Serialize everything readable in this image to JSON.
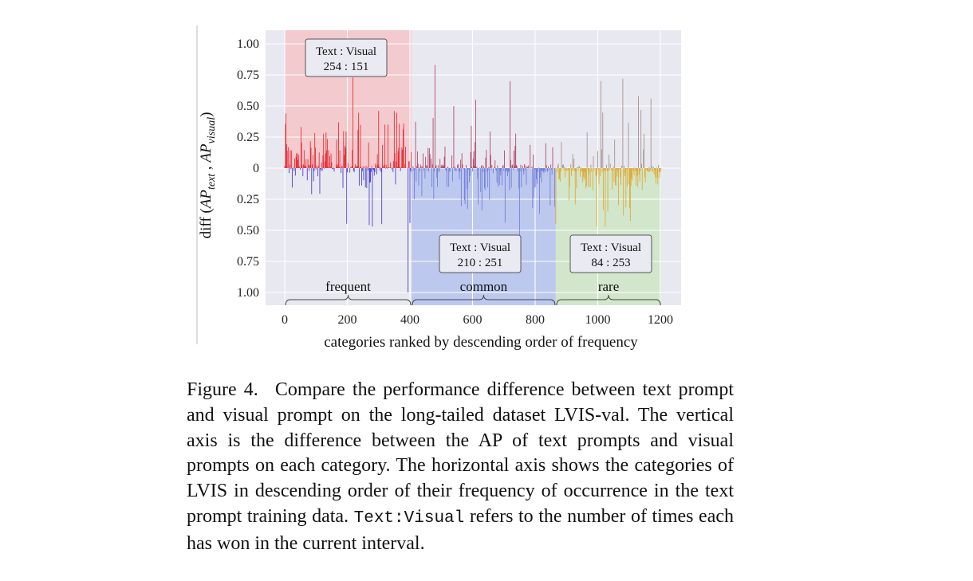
{
  "chart_data": {
    "type": "bar",
    "title": "",
    "xlabel": "categories ranked by descending order of frequency",
    "ylabel": "diff (AP_text , AP_visual)",
    "ylabel_parts": {
      "prefix": "diff (",
      "ap1": "AP",
      "sub1": "text",
      "sep": " , ",
      "ap2": "AP",
      "sub2": "visual",
      "suffix": ")"
    },
    "xlim": [
      0,
      1203
    ],
    "ylim": [
      -1.0,
      1.0
    ],
    "xticks": [
      0,
      200,
      400,
      600,
      800,
      1000,
      1200
    ],
    "yticks": [
      {
        "value": 1.0,
        "label": "1.00"
      },
      {
        "value": 0.75,
        "label": "0.75"
      },
      {
        "value": 0.5,
        "label": "0.50"
      },
      {
        "value": 0.25,
        "label": "0.25"
      },
      {
        "value": 0.0,
        "label": "0"
      },
      {
        "value": -0.25,
        "label": "0.25"
      },
      {
        "value": -0.5,
        "label": "0.50"
      },
      {
        "value": -0.75,
        "label": "0.75"
      },
      {
        "value": -1.0,
        "label": "1.00"
      }
    ],
    "grid": true,
    "groups": [
      {
        "name": "frequent",
        "range": [
          0,
          405
        ],
        "text_wins": 254,
        "visual_wins": 151,
        "box_label": "Text : Visual",
        "box_value": "254 : 151",
        "shade": "#f4c4c8",
        "pos_color": "#e8202a",
        "neg_color": "#3a2fd6"
      },
      {
        "name": "common",
        "range": [
          405,
          866
        ],
        "text_wins": 210,
        "visual_wins": 251,
        "box_label": "Text : Visual",
        "box_value": "210 : 251",
        "shade": "#b8c4ee",
        "pos_color": "#b0385a",
        "neg_color": "#6a78d8"
      },
      {
        "name": "rare",
        "range": [
          866,
          1203
        ],
        "text_wins": 84,
        "visual_wins": 253,
        "box_label": "Text : Visual",
        "box_value": "84 : 253",
        "shade": "#cfe6c8",
        "pos_color": "#a08a80",
        "neg_color": "#e0a52a"
      }
    ],
    "notable_values": [
      {
        "x": 218,
        "y": 0.73
      },
      {
        "x": 300,
        "y": 0.46
      },
      {
        "x": 380,
        "y": 0.36
      },
      {
        "x": 395,
        "y": -1.0
      },
      {
        "x": 480,
        "y": 0.83
      },
      {
        "x": 540,
        "y": 0.5
      },
      {
        "x": 610,
        "y": 0.55
      },
      {
        "x": 720,
        "y": 0.7
      },
      {
        "x": 750,
        "y": -0.73
      },
      {
        "x": 1010,
        "y": 0.7
      },
      {
        "x": 1080,
        "y": 0.72
      },
      {
        "x": 1130,
        "y": 0.58
      },
      {
        "x": 1170,
        "y": 0.56
      }
    ]
  },
  "caption": {
    "label": "Figure 4.",
    "text1": "Compare the performance difference between text prompt and visual prompt on the long-tailed dataset LVIS-val. The vertical axis is the difference between the AP of text prompts and visual prompts on each category. The horizontal axis shows the categories of LVIS in descending order of their frequency of occurrence in the text prompt training data.",
    "code": "Text:Visual",
    "text2": "refers to the number of times each has won in the current interval."
  }
}
